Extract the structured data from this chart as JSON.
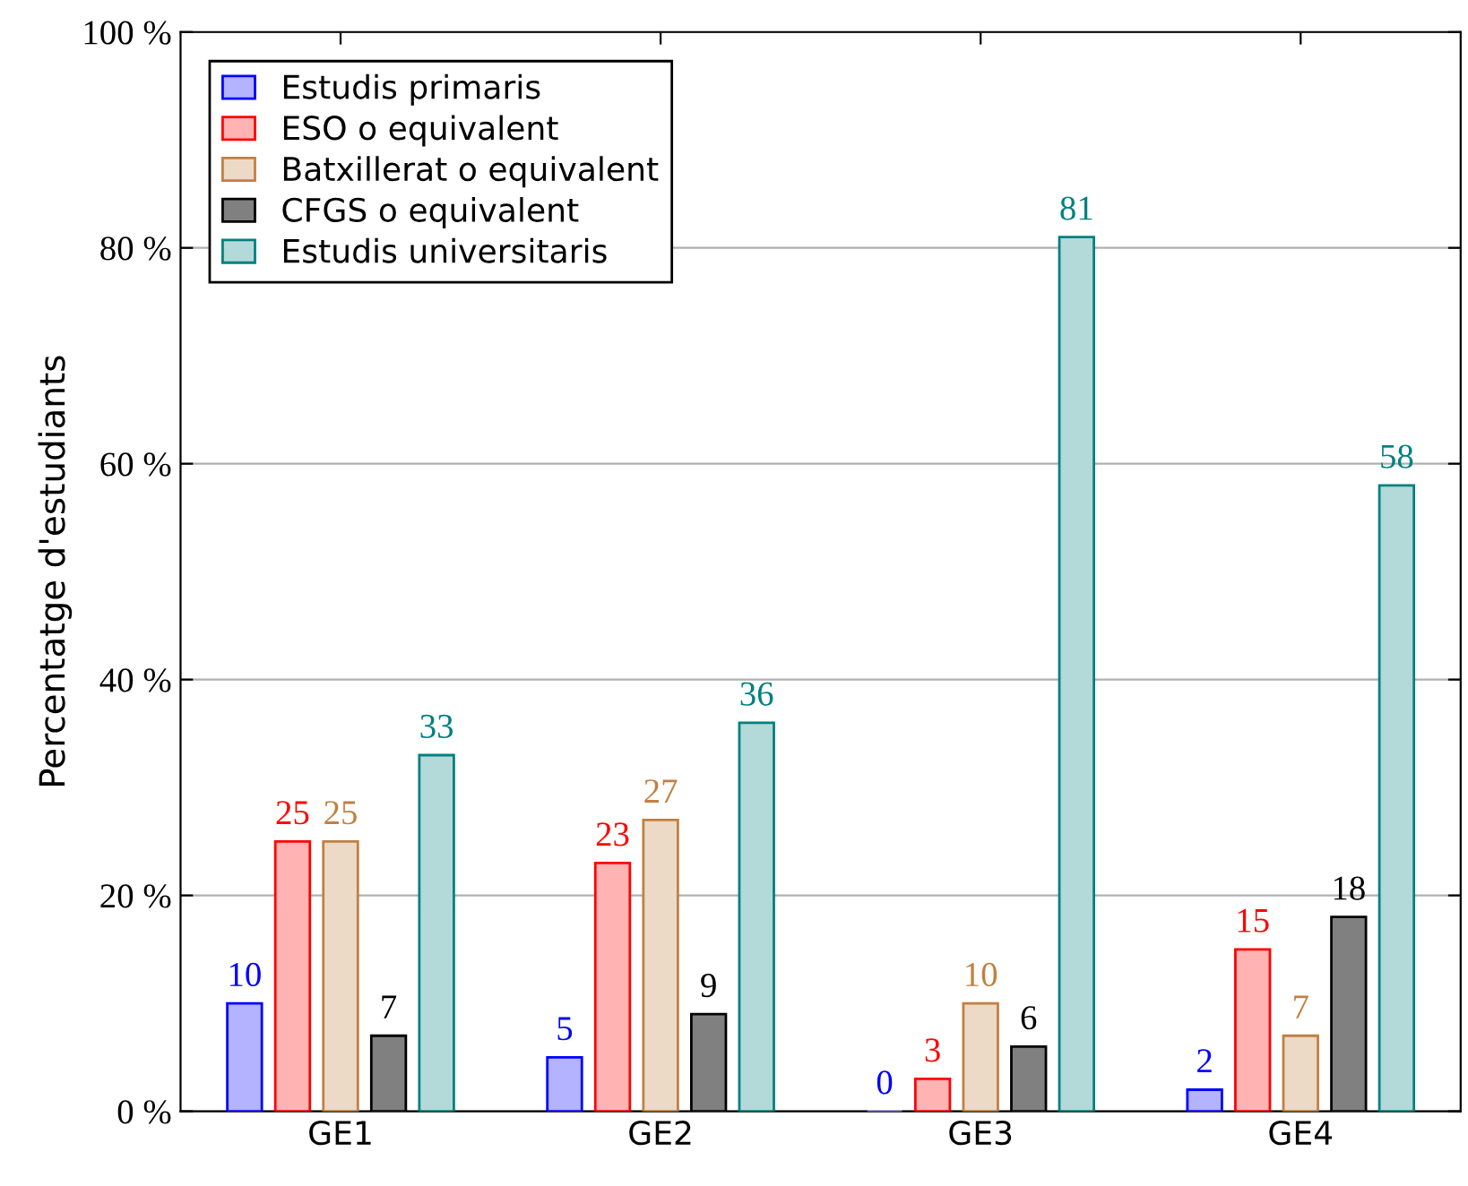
{
  "chart_data": {
    "type": "bar",
    "ylabel": "Percentatge d'estudiants",
    "categories": [
      "GE1",
      "GE2",
      "GE3",
      "GE4"
    ],
    "series": [
      {
        "name": "Estudis primaris",
        "color": "#b3b3ff",
        "values": [
          10,
          5,
          0,
          2
        ]
      },
      {
        "name": "ESO o equivalent",
        "color": "#ffb3b3",
        "values": [
          25,
          23,
          3,
          15
        ]
      },
      {
        "name": "Batxillerat o equivalent",
        "color": "#ecd9c6",
        "values": [
          25,
          27,
          10,
          7
        ]
      },
      {
        "name": "CFGS o equivalent",
        "color": "#808080",
        "values": [
          7,
          9,
          6,
          18
        ]
      },
      {
        "name": "Estudis universitaris",
        "color": "#b3d9d9",
        "values": [
          33,
          36,
          81,
          58
        ]
      }
    ],
    "ylim": [
      0,
      100
    ],
    "yticks": [
      {
        "value": 0,
        "label": "0 %"
      },
      {
        "value": 20,
        "label": "20 %"
      },
      {
        "value": 40,
        "label": "40 %"
      },
      {
        "value": 60,
        "label": "60 %"
      },
      {
        "value": 80,
        "label": "80 %"
      },
      {
        "value": 100,
        "label": "100 %"
      }
    ],
    "grid": "y",
    "legend": "top left",
    "data_labels": true
  }
}
